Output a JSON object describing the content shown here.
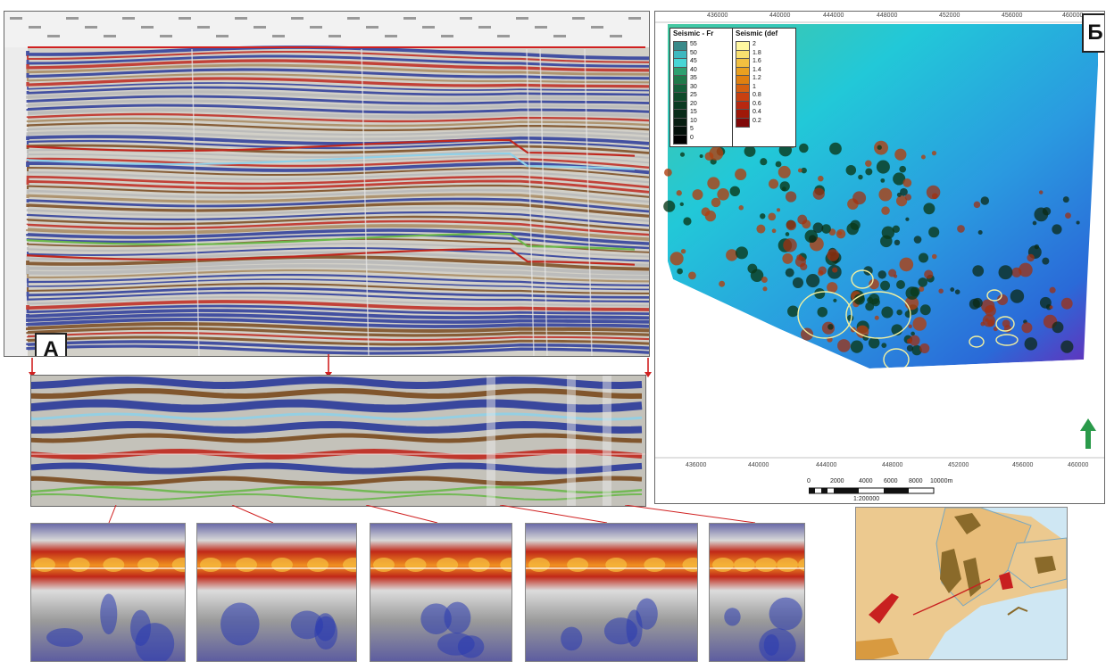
{
  "panel_labels": {
    "a": "А",
    "b": "Б"
  },
  "map": {
    "x_ticks": [
      "436000",
      "440000",
      "444000",
      "448000",
      "452000",
      "456000",
      "460000"
    ],
    "legend_freq": {
      "title": "Seismic - Fr",
      "values": [
        "55",
        "50",
        "45",
        "40",
        "35",
        "30",
        "25",
        "20",
        "15",
        "10",
        "5",
        "0"
      ],
      "colors": [
        "#3a8a8a",
        "#3fb8c0",
        "#49d6d6",
        "#2ea070",
        "#1f7a4a",
        "#14603a",
        "#0f4a2a",
        "#0c3a22",
        "#0a2c1a",
        "#081e12",
        "#04100a",
        "#000000"
      ]
    },
    "legend_dec": {
      "title": "Seismic (def",
      "values": [
        "2",
        "1.8",
        "1.6",
        "1.4",
        "1.2",
        "1",
        "0.8",
        "0.6",
        "0.4",
        "0.2"
      ],
      "colors": [
        "#fff7a0",
        "#f9e070",
        "#f2c040",
        "#e9a020",
        "#e08010",
        "#d66010",
        "#c84010",
        "#b82810",
        "#a01808",
        "#800808"
      ]
    },
    "scale_bar_labels": [
      "0",
      "2000",
      "4000",
      "6000",
      "8000",
      "10000m"
    ],
    "scale_ratio": "1:200000",
    "north_arrow_color": "#2a9a4a"
  },
  "colors": {
    "seis_red": "#c0281e",
    "seis_blue": "#2a3a9a",
    "seis_brown": "#7a4a1e",
    "seis_cyan": "#8fd0e8",
    "seis_green": "#6ab84a",
    "seis_gray": "#b8b8b8",
    "map_cyan": "#22c8d8",
    "map_blue": "#2a6ad8",
    "map_purple": "#6a2ab8"
  }
}
